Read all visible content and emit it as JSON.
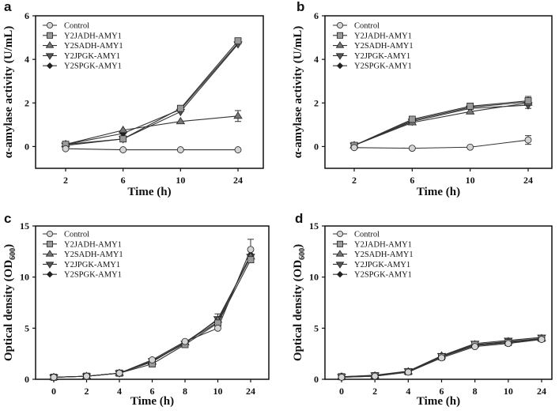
{
  "legend": [
    "Control",
    "Y2JADH-AMY1",
    "Y2SADH-AMY1",
    "Y2JPGK-AMY1",
    "Y2SPGK-AMY1"
  ],
  "series_colors": {
    "marker_fills": [
      "#d4d4d4",
      "#9a9a9a",
      "#777777",
      "#555555",
      "#222222"
    ],
    "line": "#333333"
  },
  "chart_data": [
    {
      "panel": "a",
      "type": "line",
      "xlabel": "Time (h)",
      "ylabel": "α-amylase activity (U/mL)",
      "categories": [
        "2",
        "6",
        "10",
        "24"
      ],
      "ylim": [
        -1,
        6
      ],
      "yticks": [
        0,
        2,
        4,
        6
      ],
      "legend_position": "top-left",
      "series": [
        {
          "name": "Control",
          "values": [
            -0.1,
            -0.15,
            -0.15,
            -0.15
          ]
        },
        {
          "name": "Y2JADH-AMY1",
          "values": [
            0.1,
            0.35,
            1.75,
            4.85
          ]
        },
        {
          "name": "Y2SADH-AMY1",
          "values": [
            0.1,
            0.75,
            1.15,
            1.4
          ],
          "errors": [
            0,
            0,
            0,
            0.25
          ]
        },
        {
          "name": "Y2JPGK-AMY1",
          "values": [
            0.05,
            0.35,
            1.6,
            4.7
          ]
        },
        {
          "name": "Y2SPGK-AMY1",
          "values": [
            0.1,
            0.6,
            1.7,
            4.75
          ]
        }
      ]
    },
    {
      "panel": "b",
      "type": "line",
      "xlabel": "Time (h)",
      "ylabel": "α-amylase activity (U/mL)",
      "categories": [
        "2",
        "6",
        "10",
        "24"
      ],
      "ylim": [
        -1,
        6
      ],
      "yticks": [
        0,
        2,
        4,
        6
      ],
      "legend_position": "top-left",
      "series": [
        {
          "name": "Control",
          "values": [
            -0.05,
            -0.08,
            -0.03,
            0.3
          ],
          "errors": [
            0,
            0,
            0,
            0.2
          ]
        },
        {
          "name": "Y2JADH-AMY1",
          "values": [
            0.05,
            1.25,
            1.85,
            2.1
          ],
          "errors": [
            0,
            0,
            0,
            0.2
          ]
        },
        {
          "name": "Y2SADH-AMY1",
          "values": [
            0.05,
            1.1,
            1.6,
            2.0
          ]
        },
        {
          "name": "Y2JPGK-AMY1",
          "values": [
            0.05,
            1.15,
            1.75,
            1.9
          ],
          "errors": [
            0,
            0,
            0,
            0.15
          ]
        },
        {
          "name": "Y2SPGK-AMY1",
          "values": [
            0.05,
            1.2,
            1.8,
            2.05
          ]
        }
      ]
    },
    {
      "panel": "c",
      "type": "line",
      "xlabel": "Time (h)",
      "ylabel": "Optical density (OD",
      "ylabel_sub": "600",
      "ylabel_end": ")",
      "categories": [
        "0",
        "2",
        "4",
        "6",
        "8",
        "10",
        "24"
      ],
      "ylim": [
        0,
        15
      ],
      "yticks": [
        0,
        5,
        10,
        15
      ],
      "legend_position": "top-left",
      "series": [
        {
          "name": "Control",
          "values": [
            0.2,
            0.3,
            0.6,
            1.9,
            3.7,
            5.0,
            12.7
          ],
          "errors": [
            0,
            0,
            0,
            0,
            0,
            0,
            1.0
          ]
        },
        {
          "name": "Y2JADH-AMY1",
          "values": [
            0.2,
            0.3,
            0.6,
            1.5,
            3.4,
            5.5,
            11.7
          ]
        },
        {
          "name": "Y2SADH-AMY1",
          "values": [
            0.2,
            0.3,
            0.6,
            1.7,
            3.6,
            5.8,
            12.0
          ],
          "errors": [
            0,
            0,
            0,
            0,
            0,
            0.6,
            0
          ]
        },
        {
          "name": "Y2JPGK-AMY1",
          "values": [
            0.2,
            0.3,
            0.6,
            1.8,
            3.5,
            5.9,
            12.0
          ]
        },
        {
          "name": "Y2SPGK-AMY1",
          "values": [
            0.2,
            0.3,
            0.6,
            1.8,
            3.6,
            5.6,
            12.2
          ]
        }
      ]
    },
    {
      "panel": "d",
      "type": "line",
      "xlabel": "Time (h)",
      "ylabel": "Optical density (OD",
      "ylabel_sub": "600",
      "ylabel_end": ")",
      "categories": [
        "0",
        "2",
        "4",
        "6",
        "8",
        "10",
        "24"
      ],
      "ylim": [
        0,
        15
      ],
      "yticks": [
        0,
        5,
        10,
        15
      ],
      "legend_position": "top-left",
      "series": [
        {
          "name": "Control",
          "values": [
            0.2,
            0.3,
            0.7,
            2.1,
            3.2,
            3.5,
            3.9
          ]
        },
        {
          "name": "Y2JADH-AMY1",
          "values": [
            0.25,
            0.35,
            0.75,
            2.2,
            3.4,
            3.6,
            4.0
          ]
        },
        {
          "name": "Y2SADH-AMY1",
          "values": [
            0.25,
            0.35,
            0.75,
            2.3,
            3.4,
            3.7,
            4.0
          ]
        },
        {
          "name": "Y2JPGK-AMY1",
          "values": [
            0.25,
            0.4,
            0.8,
            2.3,
            3.5,
            3.8,
            4.1
          ]
        },
        {
          "name": "Y2SPGK-AMY1",
          "values": [
            0.2,
            0.3,
            0.7,
            2.2,
            3.3,
            3.6,
            3.95
          ]
        }
      ]
    }
  ]
}
